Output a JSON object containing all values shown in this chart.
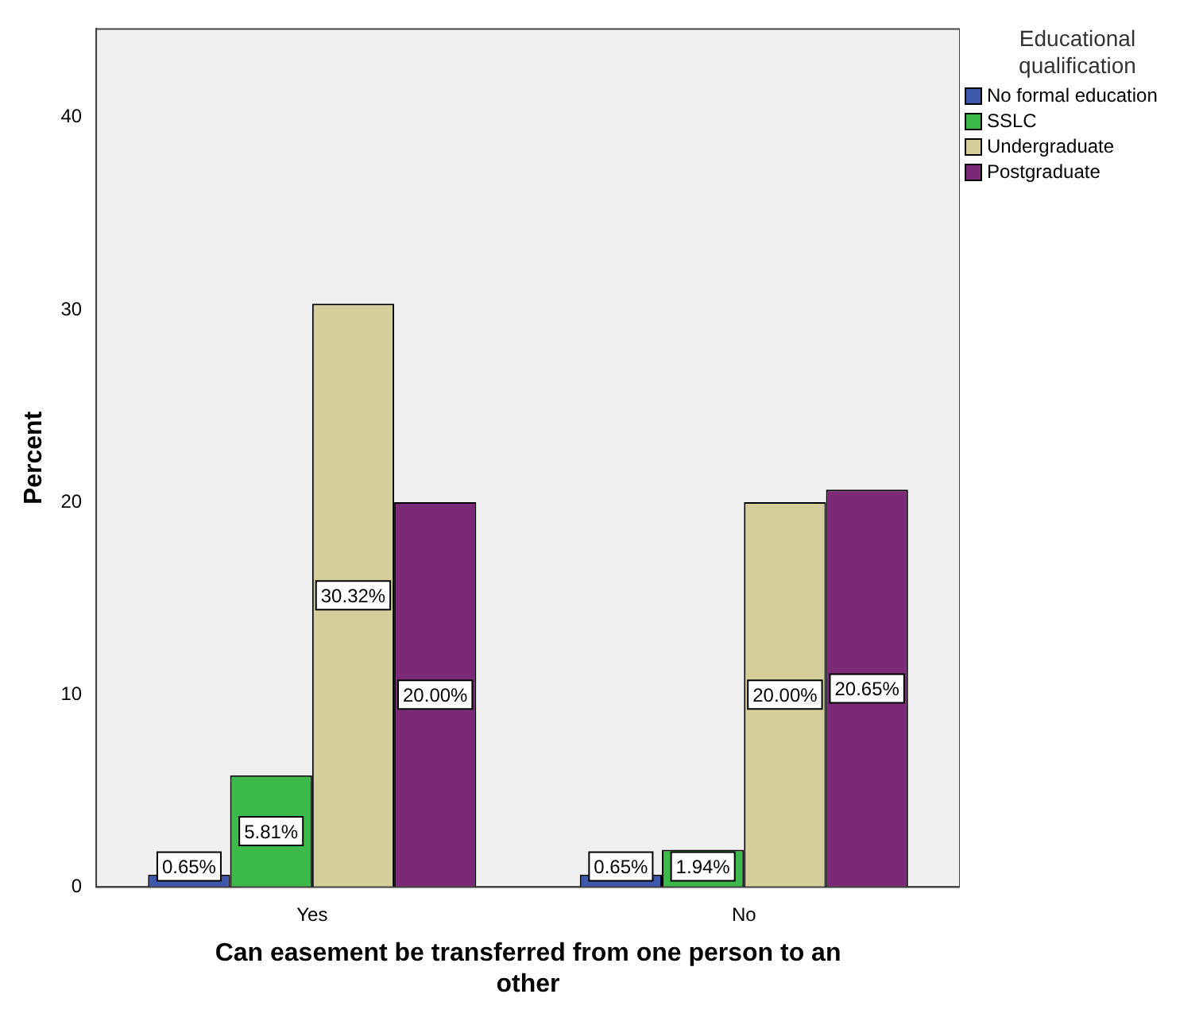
{
  "chart_data": {
    "type": "bar",
    "xlabel": "Can easement be transferred from one person to an other",
    "ylabel": "Percent",
    "legend_title": "Educational qualification",
    "categories": [
      "Yes",
      "No"
    ],
    "series": [
      {
        "name": "No formal education",
        "color": "#3e58ac",
        "values": [
          0.65,
          0.65
        ],
        "value_labels": [
          "0.65%",
          "0.65%"
        ]
      },
      {
        "name": "SSLC",
        "color": "#3cb94a",
        "values": [
          5.81,
          1.94
        ],
        "value_labels": [
          "5.81%",
          "1.94%"
        ]
      },
      {
        "name": "Undergraduate",
        "color": "#d4ce9a",
        "values": [
          30.32,
          20.0
        ],
        "value_labels": [
          "30.32%",
          "20.00%"
        ]
      },
      {
        "name": "Postgraduate",
        "color": "#7b2a78",
        "values": [
          20.0,
          20.65
        ],
        "value_labels": [
          "20.00%",
          "20.65%"
        ]
      }
    ],
    "ylim": [
      0,
      44.6
    ],
    "yticks": [
      0,
      10,
      20,
      30,
      40
    ],
    "grid": false,
    "legend": "top right"
  }
}
